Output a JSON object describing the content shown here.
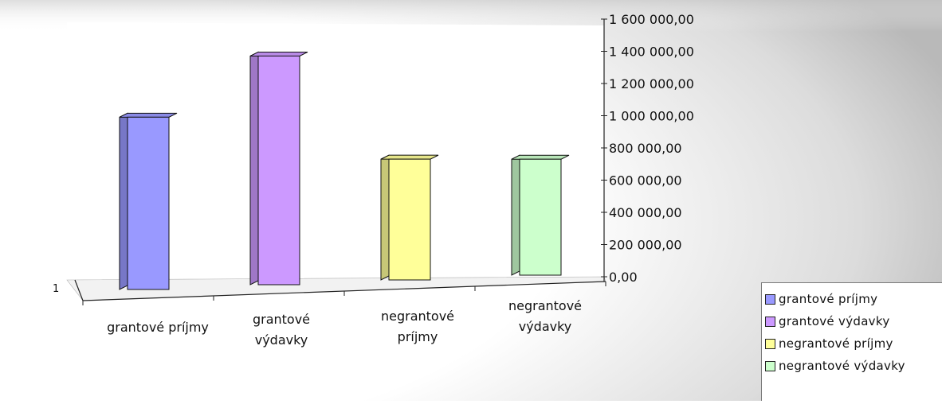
{
  "chart_data": {
    "type": "bar",
    "series_axis_label": "1",
    "categories": [
      "grantové príjmy",
      "grantové výdavky",
      "negrantové príjmy",
      "negrantové výdavky"
    ],
    "category_labels": [
      [
        "grantové príjmy"
      ],
      [
        "grantové",
        "výdavky"
      ],
      [
        "negrantové",
        "príjmy"
      ],
      [
        "negrantové",
        "výdavky"
      ]
    ],
    "values": [
      1070000,
      1420000,
      750000,
      720000
    ],
    "colors": [
      "#9999ff",
      "#cc99ff",
      "#ffff99",
      "#ccffcc"
    ],
    "yticks": [
      "0,00",
      "200 000,00",
      "400 000,00",
      "600 000,00",
      "800 000,00",
      "1 000 000,00",
      "1 200 000,00",
      "1 400 000,00",
      "1 600 000,00"
    ],
    "ylim": [
      0,
      1600000
    ],
    "legend_position": "bottom-right",
    "legend": [
      {
        "label": "grantové príjmy",
        "color": "#9999ff"
      },
      {
        "label": "grantové výdavky",
        "color": "#cc99ff"
      },
      {
        "label": "negrantové príjmy",
        "color": "#ffff99"
      },
      {
        "label": "negrantové výdavky",
        "color": "#ccffcc"
      }
    ]
  }
}
